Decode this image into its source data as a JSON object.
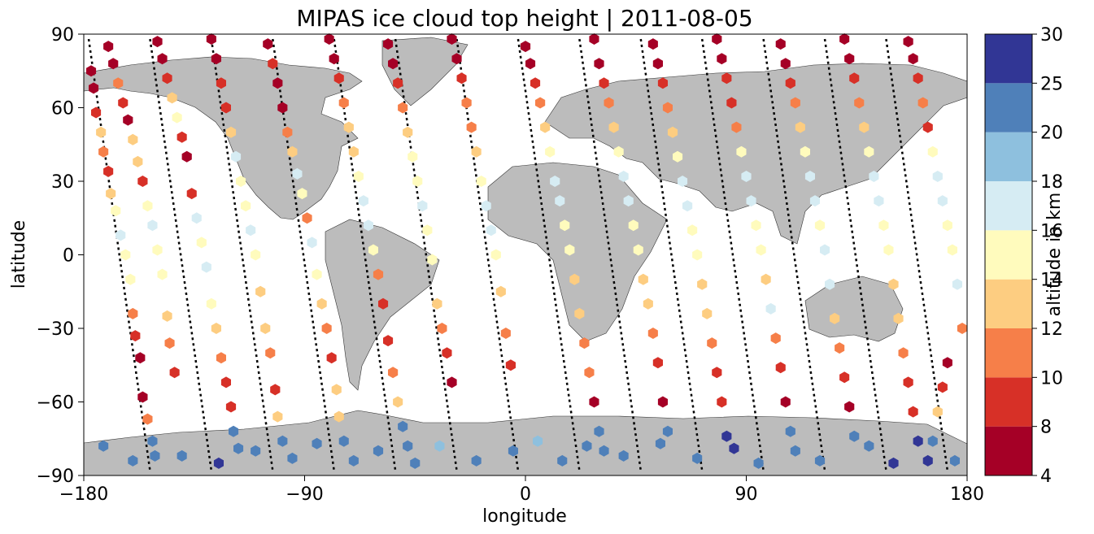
{
  "chart_data": {
    "type": "scatter",
    "title": "MIPAS ice cloud top height | 2011-08-05",
    "xlabel": "longitude",
    "ylabel": "latitude",
    "xlim": [
      -180,
      180
    ],
    "ylim": [
      -90,
      90
    ],
    "xticks": [
      -180,
      -90,
      0,
      90,
      180
    ],
    "yticks": [
      -90,
      -60,
      -30,
      0,
      30,
      60,
      90
    ],
    "xtick_labels": [
      "−180",
      "−90",
      "0",
      "90",
      "180"
    ],
    "ytick_labels": [
      "−90",
      "−60",
      "−30",
      "0",
      "30",
      "60",
      "90"
    ],
    "grid": false,
    "background_map": "world coastlines, land shaded grey",
    "track_style": "black dotted lines (measurement tracks without cloud detection)",
    "marker": "hexagon",
    "colorbar": {
      "label": "altitude in km",
      "bounds": [
        4,
        8,
        10,
        12,
        14,
        16,
        18,
        20,
        25,
        30
      ],
      "tick_labels": [
        "4",
        "8",
        "10",
        "12",
        "14",
        "16",
        "18",
        "20",
        "25",
        "30"
      ],
      "colors": [
        "#a50026",
        "#d73027",
        "#f46d43",
        "#fdae61",
        "#fee090",
        "#ffffbf",
        "#e0f3f8",
        "#abd9e9",
        "#74add1",
        "#4575b4",
        "#313695"
      ],
      "palette": [
        "#a50026",
        "#d73027",
        "#f67f49",
        "#fdcd81",
        "#fffbbd",
        "#d6ecf3",
        "#8ec0de",
        "#4f80b9",
        "#313695"
      ]
    },
    "orbits": [
      {
        "lon_top": -178,
        "lon_bot": -153
      },
      {
        "lon_top": -153,
        "lon_bot": -128
      },
      {
        "lon_top": -128,
        "lon_bot": -103
      },
      {
        "lon_top": -103,
        "lon_bot": -78
      },
      {
        "lon_top": -78,
        "lon_bot": -53
      },
      {
        "lon_top": -53,
        "lon_bot": -28
      },
      {
        "lon_top": -28,
        "lon_bot": -3
      },
      {
        "lon_top": -3,
        "lon_bot": 22
      },
      {
        "lon_top": 22,
        "lon_bot": 47
      },
      {
        "lon_top": 47,
        "lon_bot": 72
      },
      {
        "lon_top": 72,
        "lon_bot": 97
      },
      {
        "lon_top": 97,
        "lon_bot": 122
      },
      {
        "lon_top": 122,
        "lon_bot": 147
      },
      {
        "lon_top": 147,
        "lon_bot": 172
      }
    ],
    "points": [
      [
        -177,
        75,
        6
      ],
      [
        -176,
        68,
        7
      ],
      [
        -175,
        58,
        9
      ],
      [
        -173,
        50,
        12
      ],
      [
        -172,
        42,
        10
      ],
      [
        -170,
        34,
        9
      ],
      [
        -169,
        25,
        13
      ],
      [
        -167,
        18,
        15
      ],
      [
        -165,
        8,
        16
      ],
      [
        -163,
        0,
        15
      ],
      [
        -161,
        -10,
        14
      ],
      [
        -160,
        -24,
        11
      ],
      [
        -159,
        -33,
        8
      ],
      [
        -157,
        -42,
        7
      ],
      [
        -156,
        -58,
        7
      ],
      [
        -154,
        -67,
        10
      ],
      [
        -152,
        -76,
        22
      ],
      [
        -151,
        -82,
        22
      ],
      [
        -170,
        85,
        6
      ],
      [
        -168,
        78,
        7
      ],
      [
        -166,
        70,
        10
      ],
      [
        -164,
        62,
        8
      ],
      [
        -162,
        55,
        6
      ],
      [
        -160,
        47,
        13
      ],
      [
        -158,
        38,
        12
      ],
      [
        -156,
        30,
        9
      ],
      [
        -154,
        20,
        15
      ],
      [
        -152,
        12,
        16
      ],
      [
        -150,
        2,
        15
      ],
      [
        -148,
        -8,
        14
      ],
      [
        -146,
        -25,
        12
      ],
      [
        -145,
        -36,
        10
      ],
      [
        -143,
        -48,
        8
      ],
      [
        -150,
        87,
        6
      ],
      [
        -148,
        80,
        7
      ],
      [
        -146,
        72,
        8
      ],
      [
        -144,
        64,
        12
      ],
      [
        -142,
        56,
        14
      ],
      [
        -140,
        48,
        8
      ],
      [
        -138,
        40,
        7
      ],
      [
        -136,
        25,
        9
      ],
      [
        -134,
        15,
        16
      ],
      [
        -132,
        5,
        15
      ],
      [
        -130,
        -5,
        16
      ],
      [
        -128,
        -20,
        14
      ],
      [
        -126,
        -30,
        12
      ],
      [
        -124,
        -42,
        10
      ],
      [
        -122,
        -52,
        9
      ],
      [
        -120,
        -62,
        8
      ],
      [
        -119,
        -72,
        20
      ],
      [
        -117,
        -79,
        22
      ],
      [
        -128,
        88,
        6
      ],
      [
        -126,
        80,
        7
      ],
      [
        -124,
        70,
        8
      ],
      [
        -122,
        60,
        9
      ],
      [
        -120,
        50,
        13
      ],
      [
        -118,
        40,
        16
      ],
      [
        -116,
        30,
        15
      ],
      [
        -114,
        20,
        15
      ],
      [
        -112,
        10,
        16
      ],
      [
        -110,
        0,
        14
      ],
      [
        -108,
        -15,
        13
      ],
      [
        -106,
        -30,
        12
      ],
      [
        -104,
        -40,
        10
      ],
      [
        -102,
        -55,
        8
      ],
      [
        -101,
        -66,
        12
      ],
      [
        -99,
        -76,
        22
      ],
      [
        -105,
        86,
        7
      ],
      [
        -103,
        78,
        8
      ],
      [
        -101,
        70,
        6
      ],
      [
        -99,
        60,
        7
      ],
      [
        -97,
        50,
        10
      ],
      [
        -95,
        42,
        13
      ],
      [
        -93,
        33,
        16
      ],
      [
        -91,
        25,
        15
      ],
      [
        -89,
        15,
        10
      ],
      [
        -87,
        5,
        17
      ],
      [
        -85,
        -8,
        15
      ],
      [
        -83,
        -20,
        13
      ],
      [
        -81,
        -30,
        11
      ],
      [
        -79,
        -42,
        9
      ],
      [
        -77,
        -55,
        12
      ],
      [
        -76,
        -66,
        13
      ],
      [
        -74,
        -76,
        22
      ],
      [
        -80,
        88,
        6
      ],
      [
        -78,
        80,
        7
      ],
      [
        -76,
        72,
        8
      ],
      [
        -74,
        62,
        10
      ],
      [
        -72,
        52,
        12
      ],
      [
        -70,
        42,
        13
      ],
      [
        -68,
        32,
        14
      ],
      [
        -66,
        22,
        17
      ],
      [
        -64,
        12,
        17
      ],
      [
        -62,
        2,
        14
      ],
      [
        -60,
        -8,
        10
      ],
      [
        -58,
        -20,
        9
      ],
      [
        -56,
        -35,
        8
      ],
      [
        -54,
        -48,
        10
      ],
      [
        -52,
        -60,
        12
      ],
      [
        -50,
        -70,
        22
      ],
      [
        -48,
        -78,
        22
      ],
      [
        -56,
        86,
        6
      ],
      [
        -54,
        78,
        7
      ],
      [
        -52,
        70,
        8
      ],
      [
        -50,
        60,
        10
      ],
      [
        -48,
        50,
        12
      ],
      [
        -46,
        40,
        14
      ],
      [
        -44,
        30,
        15
      ],
      [
        -42,
        20,
        16
      ],
      [
        -40,
        10,
        15
      ],
      [
        -38,
        -2,
        14
      ],
      [
        -36,
        -20,
        12
      ],
      [
        -34,
        -30,
        10
      ],
      [
        -32,
        -40,
        9
      ],
      [
        -30,
        -52,
        7
      ],
      [
        -30,
        88,
        6
      ],
      [
        -28,
        80,
        7
      ],
      [
        -26,
        72,
        9
      ],
      [
        -24,
        62,
        10
      ],
      [
        -22,
        52,
        11
      ],
      [
        -20,
        42,
        13
      ],
      [
        -18,
        30,
        15
      ],
      [
        -16,
        20,
        16
      ],
      [
        -14,
        10,
        16
      ],
      [
        -12,
        0,
        15
      ],
      [
        -10,
        -15,
        13
      ],
      [
        -8,
        -32,
        10
      ],
      [
        -6,
        -45,
        8
      ],
      [
        0,
        85,
        6
      ],
      [
        2,
        78,
        7
      ],
      [
        4,
        70,
        8
      ],
      [
        6,
        62,
        10
      ],
      [
        8,
        52,
        12
      ],
      [
        10,
        42,
        14
      ],
      [
        12,
        30,
        16
      ],
      [
        14,
        22,
        17
      ],
      [
        16,
        12,
        15
      ],
      [
        18,
        2,
        14
      ],
      [
        20,
        -10,
        13
      ],
      [
        22,
        -24,
        12
      ],
      [
        24,
        -36,
        10
      ],
      [
        26,
        -48,
        11
      ],
      [
        28,
        -60,
        7
      ],
      [
        30,
        -72,
        20
      ],
      [
        32,
        -80,
        22
      ],
      [
        28,
        88,
        6
      ],
      [
        30,
        78,
        7
      ],
      [
        32,
        70,
        8
      ],
      [
        34,
        62,
        10
      ],
      [
        36,
        52,
        12
      ],
      [
        38,
        42,
        14
      ],
      [
        40,
        32,
        16
      ],
      [
        42,
        22,
        17
      ],
      [
        44,
        12,
        15
      ],
      [
        46,
        2,
        14
      ],
      [
        48,
        -10,
        13
      ],
      [
        50,
        -20,
        12
      ],
      [
        52,
        -32,
        11
      ],
      [
        54,
        -44,
        9
      ],
      [
        56,
        -60,
        7
      ],
      [
        58,
        -72,
        22
      ],
      [
        52,
        86,
        6
      ],
      [
        54,
        78,
        7
      ],
      [
        56,
        70,
        9
      ],
      [
        58,
        60,
        10
      ],
      [
        60,
        50,
        12
      ],
      [
        62,
        40,
        14
      ],
      [
        64,
        30,
        16
      ],
      [
        66,
        20,
        17
      ],
      [
        68,
        10,
        15
      ],
      [
        70,
        0,
        14
      ],
      [
        72,
        -12,
        13
      ],
      [
        74,
        -24,
        12
      ],
      [
        76,
        -36,
        11
      ],
      [
        78,
        -48,
        9
      ],
      [
        80,
        -60,
        8
      ],
      [
        82,
        -74,
        25
      ],
      [
        78,
        88,
        6
      ],
      [
        80,
        80,
        7
      ],
      [
        82,
        72,
        8
      ],
      [
        84,
        62,
        9
      ],
      [
        86,
        52,
        11
      ],
      [
        88,
        42,
        14
      ],
      [
        90,
        32,
        16
      ],
      [
        92,
        22,
        17
      ],
      [
        94,
        12,
        15
      ],
      [
        96,
        2,
        14
      ],
      [
        98,
        -10,
        13
      ],
      [
        100,
        -22,
        16
      ],
      [
        102,
        -34,
        11
      ],
      [
        104,
        -46,
        8
      ],
      [
        106,
        -60,
        7
      ],
      [
        108,
        -72,
        22
      ],
      [
        104,
        86,
        6
      ],
      [
        106,
        78,
        7
      ],
      [
        108,
        70,
        9
      ],
      [
        110,
        62,
        10
      ],
      [
        112,
        52,
        12
      ],
      [
        114,
        42,
        14
      ],
      [
        116,
        32,
        16
      ],
      [
        118,
        22,
        17
      ],
      [
        120,
        12,
        15
      ],
      [
        122,
        2,
        17
      ],
      [
        124,
        -12,
        16
      ],
      [
        126,
        -26,
        13
      ],
      [
        128,
        -38,
        11
      ],
      [
        130,
        -50,
        9
      ],
      [
        132,
        -62,
        7
      ],
      [
        134,
        -74,
        22
      ],
      [
        130,
        88,
        6
      ],
      [
        132,
        80,
        7
      ],
      [
        134,
        72,
        9
      ],
      [
        136,
        62,
        10
      ],
      [
        138,
        52,
        12
      ],
      [
        140,
        42,
        14
      ],
      [
        142,
        32,
        16
      ],
      [
        144,
        22,
        17
      ],
      [
        146,
        12,
        15
      ],
      [
        148,
        2,
        14
      ],
      [
        150,
        -12,
        13
      ],
      [
        152,
        -26,
        12
      ],
      [
        154,
        -40,
        11
      ],
      [
        156,
        -52,
        9
      ],
      [
        158,
        -64,
        8
      ],
      [
        160,
        -76,
        25
      ],
      [
        156,
        87,
        6
      ],
      [
        158,
        80,
        7
      ],
      [
        160,
        72,
        9
      ],
      [
        162,
        62,
        10
      ],
      [
        164,
        52,
        8
      ],
      [
        166,
        42,
        14
      ],
      [
        168,
        32,
        16
      ],
      [
        170,
        22,
        17
      ],
      [
        172,
        12,
        15
      ],
      [
        174,
        2,
        14
      ],
      [
        176,
        -12,
        16
      ],
      [
        178,
        -30,
        11
      ],
      [
        172,
        -44,
        7
      ],
      [
        170,
        -54,
        8
      ],
      [
        168,
        -64,
        12
      ],
      [
        166,
        -76,
        22
      ],
      [
        164,
        -84,
        27
      ],
      [
        -172,
        -78,
        22
      ],
      [
        -160,
        -84,
        22
      ],
      [
        -140,
        -82,
        22
      ],
      [
        -125,
        -85,
        27
      ],
      [
        -110,
        -80,
        22
      ],
      [
        -95,
        -83,
        22
      ],
      [
        -85,
        -77,
        22
      ],
      [
        -70,
        -84,
        22
      ],
      [
        -60,
        -80,
        22
      ],
      [
        -45,
        -85,
        22
      ],
      [
        -35,
        -78,
        19
      ],
      [
        -20,
        -84,
        22
      ],
      [
        -5,
        -80,
        22
      ],
      [
        5,
        -76,
        19
      ],
      [
        15,
        -84,
        22
      ],
      [
        25,
        -78,
        20
      ],
      [
        40,
        -82,
        22
      ],
      [
        55,
        -77,
        22
      ],
      [
        70,
        -83,
        22
      ],
      [
        85,
        -79,
        27
      ],
      [
        95,
        -85,
        22
      ],
      [
        110,
        -80,
        22
      ],
      [
        120,
        -84,
        22
      ],
      [
        140,
        -78,
        22
      ],
      [
        150,
        -85,
        27
      ],
      [
        175,
        -84,
        22
      ]
    ]
  }
}
